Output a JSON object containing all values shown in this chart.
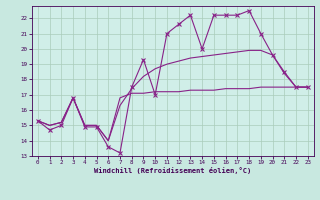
{
  "background_color": "#c8e8e0",
  "plot_bg_color": "#d0eee8",
  "grid_color": "#aaccbb",
  "line_color": "#882288",
  "xlabel": "Windchill (Refroidissement éolien,°C)",
  "xlim": [
    -0.5,
    23.5
  ],
  "ylim": [
    13,
    22.8
  ],
  "ytick_vals": [
    13,
    14,
    15,
    16,
    17,
    18,
    19,
    20,
    21,
    22
  ],
  "xtick_vals": [
    0,
    1,
    2,
    3,
    4,
    5,
    6,
    7,
    8,
    9,
    10,
    11,
    12,
    13,
    14,
    15,
    16,
    17,
    18,
    19,
    20,
    21,
    22,
    23
  ],
  "s1_x": [
    0,
    1,
    2,
    3,
    4,
    5,
    6,
    7,
    8,
    9,
    10,
    11,
    12,
    13,
    14,
    15,
    16,
    17,
    18,
    19,
    20,
    21,
    22,
    23
  ],
  "s1_y": [
    15.3,
    14.7,
    15.0,
    16.8,
    14.9,
    14.9,
    13.6,
    13.2,
    17.5,
    19.3,
    17.0,
    21.0,
    21.6,
    22.2,
    20.0,
    22.2,
    22.2,
    22.2,
    22.5,
    21.0,
    19.6,
    18.5,
    17.5,
    17.5
  ],
  "s2_x": [
    0,
    1,
    2,
    3,
    4,
    5,
    6,
    7,
    8,
    9,
    10,
    11,
    12,
    13,
    14,
    15,
    16,
    17,
    18,
    19,
    20,
    21,
    22,
    23
  ],
  "s2_y": [
    15.3,
    15.0,
    15.2,
    16.8,
    15.0,
    15.0,
    14.0,
    16.8,
    17.1,
    17.1,
    17.2,
    17.2,
    17.2,
    17.3,
    17.3,
    17.3,
    17.4,
    17.4,
    17.4,
    17.5,
    17.5,
    17.5,
    17.5,
    17.5
  ],
  "s3_x": [
    0,
    1,
    2,
    3,
    4,
    5,
    6,
    7,
    8,
    9,
    10,
    11,
    12,
    13,
    14,
    15,
    16,
    17,
    18,
    19,
    20,
    21,
    22,
    23
  ],
  "s3_y": [
    15.3,
    15.0,
    15.2,
    16.8,
    15.0,
    15.0,
    14.0,
    16.3,
    17.4,
    18.2,
    18.7,
    19.0,
    19.2,
    19.4,
    19.5,
    19.6,
    19.7,
    19.8,
    19.9,
    19.9,
    19.6,
    18.4,
    17.5,
    17.5
  ]
}
